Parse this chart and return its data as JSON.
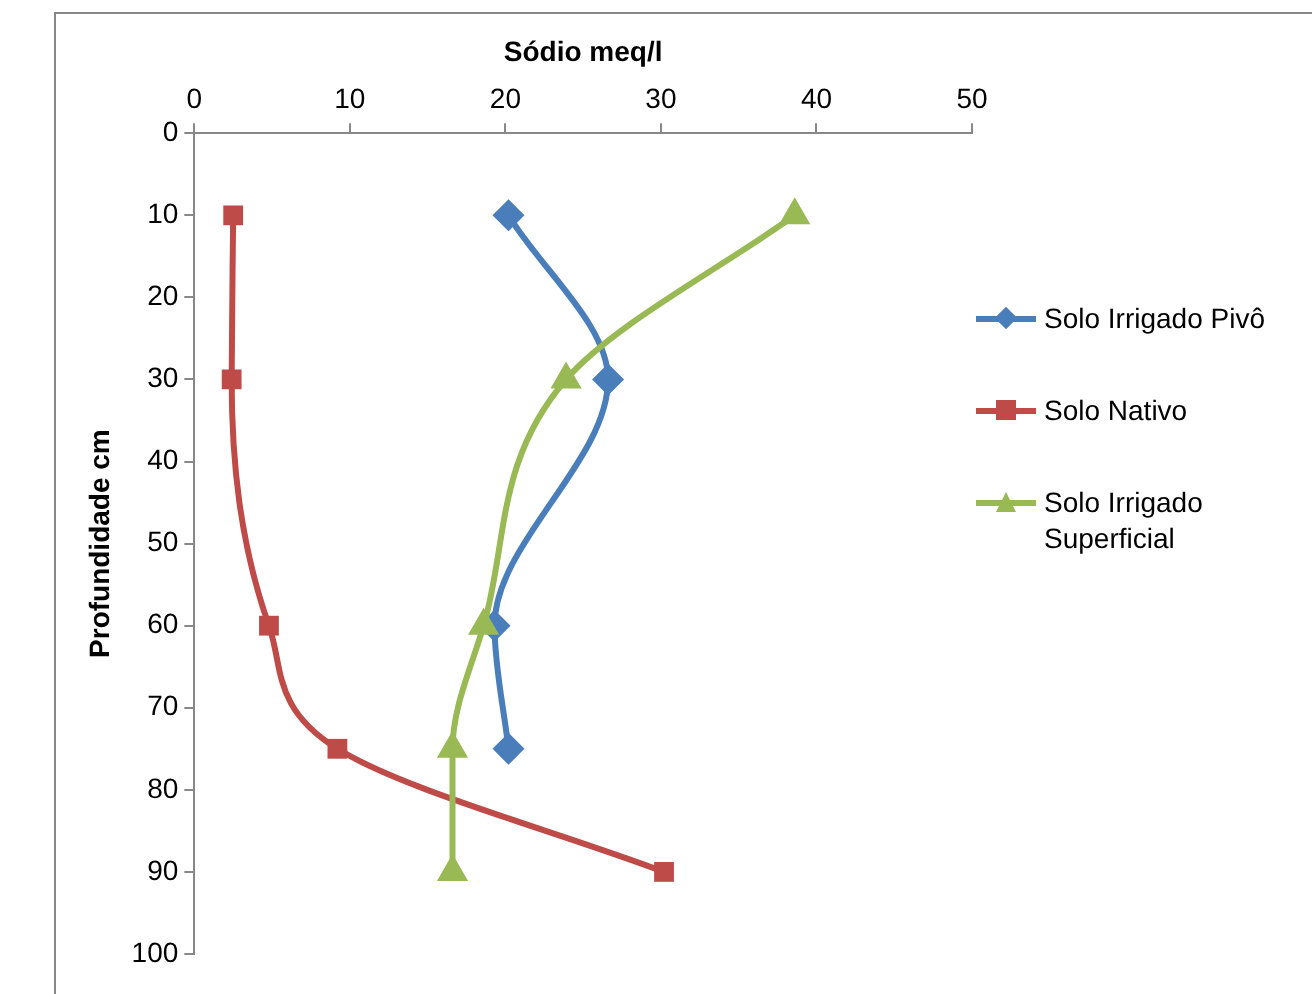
{
  "chart_data": {
    "type": "line",
    "xlabel": "Sódio meq/l",
    "ylabel": "Profundidade cm",
    "xlim": [
      0,
      50
    ],
    "xticks": [
      0,
      10,
      20,
      30,
      40,
      50
    ],
    "ylim": [
      100,
      0
    ],
    "yticks": [
      0,
      10,
      20,
      30,
      40,
      50,
      60,
      70,
      80,
      90,
      100
    ],
    "grid": false,
    "legend": "right",
    "series": [
      {
        "name": "Solo Irrigado Pivô",
        "color": "#4a7ebb",
        "marker": "diamond",
        "x": [
          20.2,
          26.6,
          19.3,
          20.2
        ],
        "values": [
          10,
          30,
          60,
          75
        ]
      },
      {
        "name": "Solo Nativo",
        "color": "#be4b48",
        "marker": "square",
        "x": [
          2.5,
          2.4,
          4.8,
          9.2,
          30.2
        ],
        "values": [
          10,
          30,
          60,
          75,
          90
        ]
      },
      {
        "name": "Solo Irrigado Superficial",
        "color": "#98b954",
        "marker": "triangle",
        "x": [
          38.6,
          23.9,
          18.6,
          16.6,
          16.6
        ],
        "values": [
          10,
          30,
          60,
          75,
          90
        ]
      }
    ]
  }
}
